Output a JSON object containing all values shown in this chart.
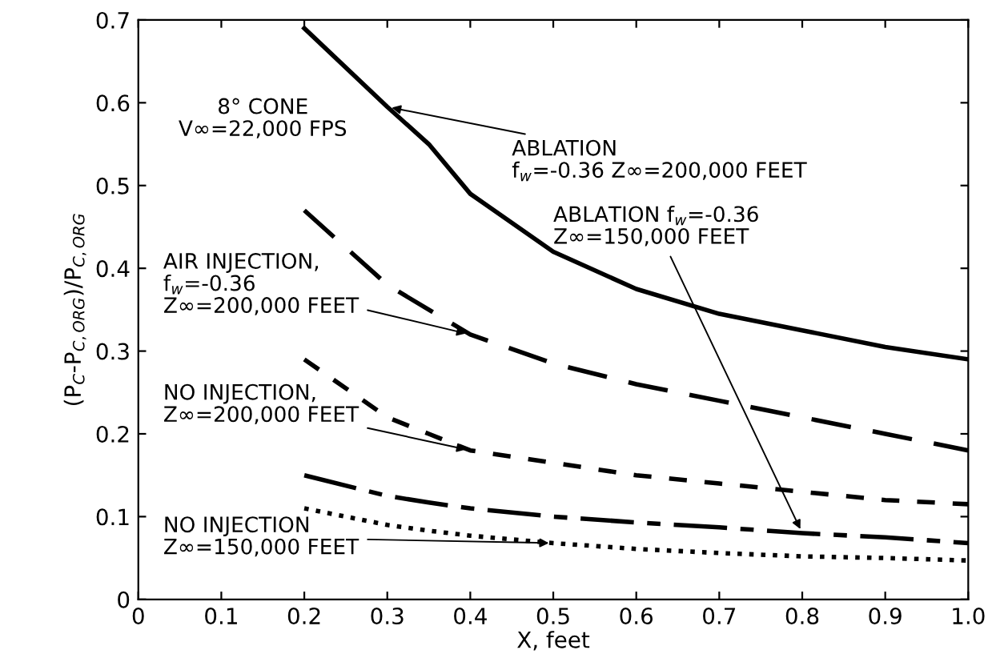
{
  "chart_data": {
    "type": "line",
    "xlabel": "X, feet",
    "ylabel": "(P$_{C}$-P$_{C,ORG}$)/P$_{C,ORG}$",
    "xlim": [
      0,
      1.0
    ],
    "ylim": [
      0,
      0.7
    ],
    "xticks": [
      0,
      0.1,
      0.2,
      0.3,
      0.4,
      0.5,
      0.6,
      0.7,
      0.8,
      0.9,
      {
        "value": 1.0,
        "label": "1.0"
      }
    ],
    "yticks": [
      0,
      0.1,
      0.2,
      0.3,
      0.4,
      0.5,
      0.6,
      0.7
    ],
    "grid": false,
    "legend": false,
    "marker": "none",
    "annotations": [
      "8° CONE\nV∞=22,000 FPS"
    ],
    "x": [
      0.2,
      0.3,
      0.35,
      0.4,
      0.5,
      0.6,
      0.7,
      0.8,
      0.9,
      1.0
    ],
    "series": [
      {
        "name": "ABLATION\nf$_{w}$=-0.36 Z∞=200,000 FEET",
        "color": "#000000",
        "line_style": "solid",
        "values": [
          0.69,
          0.595,
          0.55,
          0.49,
          0.42,
          0.375,
          0.345,
          0.325,
          0.305,
          0.29
        ]
      },
      {
        "name": "AIR INJECTION,\nf$_{w}$=-0.36\nZ∞=200,000 FEET",
        "color": "#000000",
        "line_style": "dashed",
        "values": [
          0.47,
          0.38,
          0.35,
          0.32,
          0.285,
          0.26,
          0.24,
          0.22,
          0.2,
          0.18
        ]
      },
      {
        "name": "NO INJECTION,\nZ∞=200,000 FEET",
        "color": "#000000",
        "line_style": "dashed",
        "values": [
          0.29,
          0.22,
          0.2,
          0.18,
          0.165,
          0.15,
          0.14,
          0.13,
          0.12,
          0.115
        ]
      },
      {
        "name": "ABLATION f$_{w}$=-0.36\nZ∞=150,000 FEET",
        "color": "#000000",
        "line_style": "dashed",
        "values": [
          0.15,
          0.125,
          0.117,
          0.11,
          0.1,
          0.093,
          0.087,
          0.08,
          0.075,
          0.068
        ]
      },
      {
        "name": "NO INJECTION\nZ∞=150,000 FEET",
        "color": "#000000",
        "line_style": "dotted",
        "values": [
          0.11,
          0.09,
          0.083,
          0.077,
          0.068,
          0.061,
          0.056,
          0.052,
          0.05,
          0.047
        ]
      }
    ]
  }
}
